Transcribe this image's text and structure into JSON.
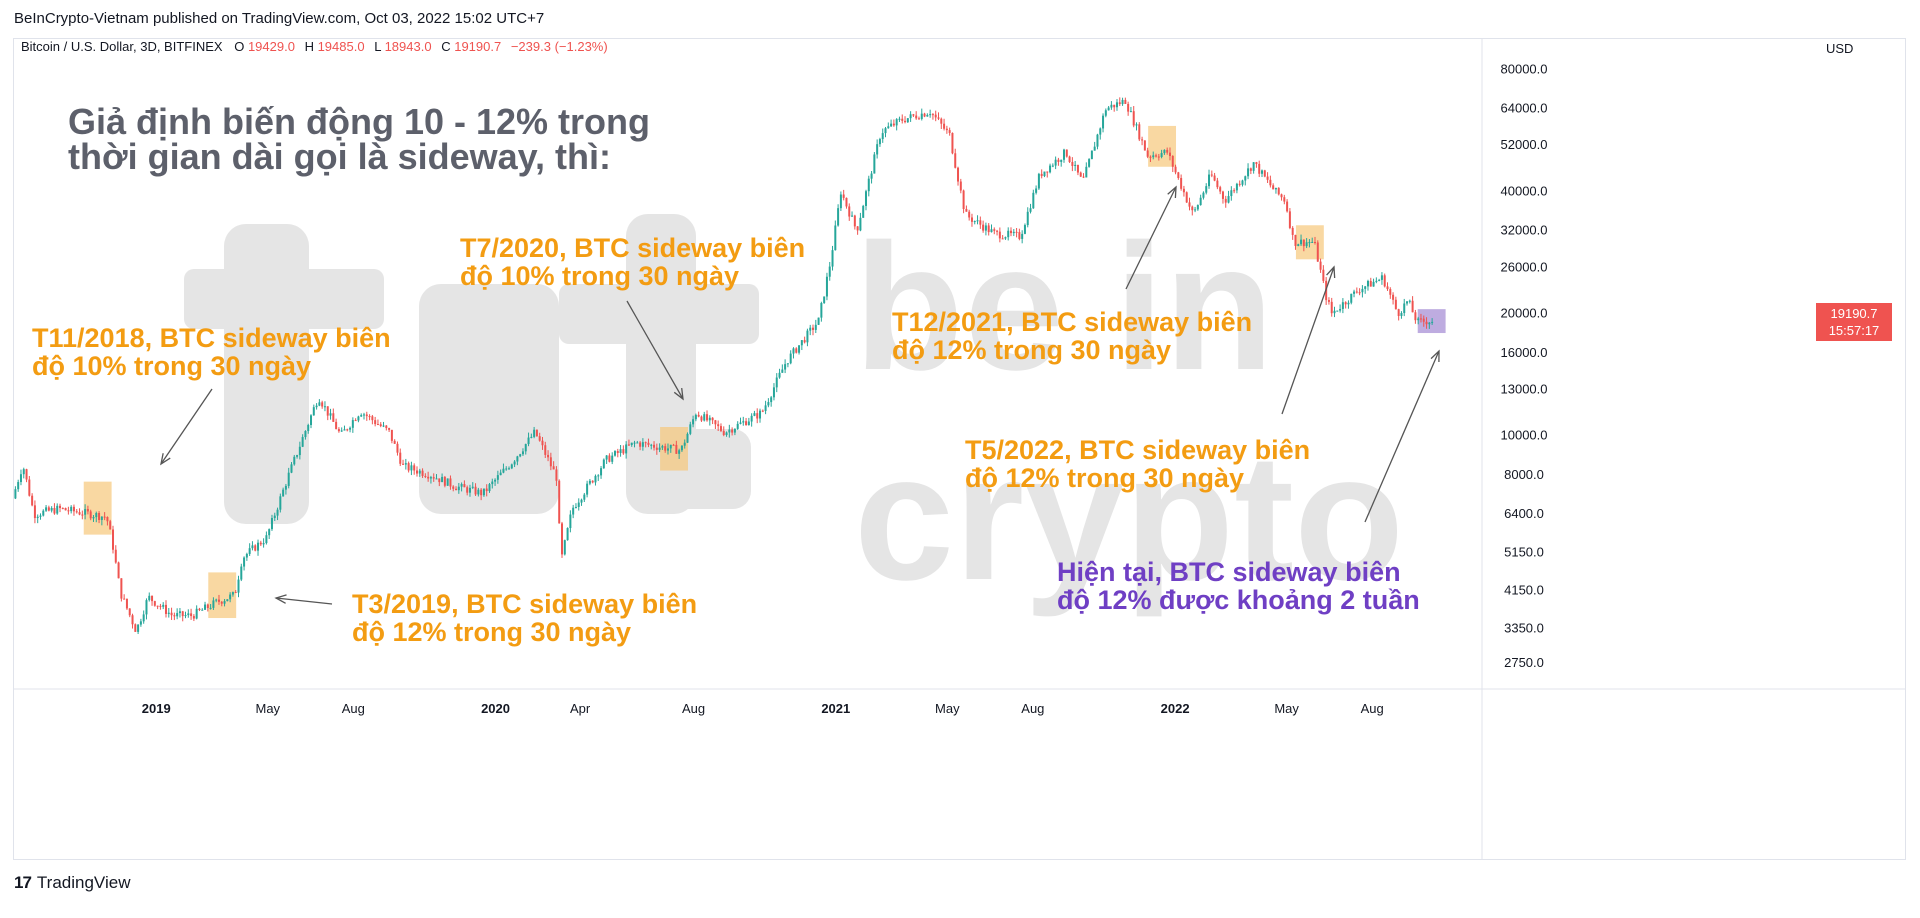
{
  "header": {
    "publish_line": "BeInCrypto-Vietnam published on TradingView.com, Oct 03, 2022 15:02 UTC+7"
  },
  "legend": {
    "symbol": "Bitcoin / U.S. Dollar, 3D, BITFINEX",
    "o_label": "O",
    "o_value": "19429.0",
    "h_label": "H",
    "h_value": "19485.0",
    "l_label": "L",
    "l_value": "18943.0",
    "c_label": "C",
    "c_value": "19190.7",
    "change": "−239.3 (−1.23%)"
  },
  "price_axis": {
    "currency": "USD",
    "last_price": "19190.7",
    "countdown": "15:57:17"
  },
  "headline": {
    "line1": "Giả định biến động 10 - 12% trong",
    "line2": "thời gian dài gọi là sideway, thì:"
  },
  "annotations": [
    {
      "line1": "T11/2018, BTC sideway biên",
      "line2": "độ 10% trong 30 ngày"
    },
    {
      "line1": "T3/2019, BTC sideway biên",
      "line2": "độ 12% trong 30 ngày"
    },
    {
      "line1": "T7/2020, BTC sideway biên",
      "line2": "độ 10% trong 30 ngày"
    },
    {
      "line1": "T12/2021, BTC sideway biên",
      "line2": "độ 12% trong 30 ngày"
    },
    {
      "line1": "T5/2022, BTC sideway biên",
      "line2": "độ 12% trong 30 ngày"
    },
    {
      "line1": "Hiện tại, BTC sideway biên",
      "line2": "độ 12% được khoảng 2 tuần"
    }
  ],
  "watermark": {
    "line1": "be in",
    "line2": "crypto"
  },
  "footer": {
    "brand": "TradingView"
  },
  "colors": {
    "up": "#26a69a",
    "down": "#ef5350",
    "annotation_orange": "#f39c12",
    "annotation_purple": "#6f3fc4",
    "highlight_orange": "#f7c77a",
    "highlight_purple": "#b39ddb",
    "headline": "#5d606b",
    "watermark": "#e5e5e5"
  },
  "chart_data": {
    "type": "candlestick",
    "title": "Bitcoin / U.S. Dollar, 3D, BITFINEX",
    "y_scale": "log",
    "ylim": [
      2400,
      95000
    ],
    "y_ticks": [
      80000,
      64000,
      52000,
      40000,
      32000,
      26000,
      20000,
      16000,
      13000,
      10000,
      8000,
      6400,
      5150,
      4150,
      3350,
      2750
    ],
    "y_tick_labels": [
      "80000.0",
      "64000.0",
      "52000.0",
      "40000.0",
      "32000.0",
      "26000.0",
      "20000.0",
      "16000.0",
      "13000.0",
      "10000.0",
      "8000.0",
      "6400.0",
      "5150.0",
      "4150.0",
      "3350.0",
      "2750.0"
    ],
    "x_range": [
      "2018-08-01",
      "2022-11-25"
    ],
    "x_ticks": [
      {
        "date": "2019-01-01",
        "label": "2019",
        "bold": true
      },
      {
        "date": "2019-05-01",
        "label": "May",
        "bold": false
      },
      {
        "date": "2019-08-01",
        "label": "Aug",
        "bold": false
      },
      {
        "date": "2020-01-01",
        "label": "2020",
        "bold": true
      },
      {
        "date": "2020-04-01",
        "label": "Apr",
        "bold": false
      },
      {
        "date": "2020-08-01",
        "label": "Aug",
        "bold": false
      },
      {
        "date": "2021-01-01",
        "label": "2021",
        "bold": true
      },
      {
        "date": "2021-05-01",
        "label": "May",
        "bold": false
      },
      {
        "date": "2021-08-01",
        "label": "Aug",
        "bold": false
      },
      {
        "date": "2022-01-01",
        "label": "2022",
        "bold": true
      },
      {
        "date": "2022-05-01",
        "label": "May",
        "bold": false
      },
      {
        "date": "2022-08-01",
        "label": "Aug",
        "bold": false
      }
    ],
    "trend_anchors": [
      [
        "2018-08-01",
        7000
      ],
      [
        "2018-08-12",
        8500
      ],
      [
        "2018-08-24",
        6400
      ],
      [
        "2018-09-20",
        6600
      ],
      [
        "2018-10-25",
        6400
      ],
      [
        "2018-11-10",
        6300
      ],
      [
        "2018-11-16",
        5500
      ],
      [
        "2018-11-25",
        4100
      ],
      [
        "2018-12-12",
        3300
      ],
      [
        "2018-12-25",
        4000
      ],
      [
        "2019-01-20",
        3600
      ],
      [
        "2019-02-10",
        3600
      ],
      [
        "2019-03-10",
        3900
      ],
      [
        "2019-03-28",
        4050
      ],
      [
        "2019-04-05",
        5000
      ],
      [
        "2019-05-01",
        5600
      ],
      [
        "2019-05-25",
        8000
      ],
      [
        "2019-06-26",
        12500
      ],
      [
        "2019-07-20",
        10000
      ],
      [
        "2019-08-10",
        11500
      ],
      [
        "2019-09-10",
        10200
      ],
      [
        "2019-09-25",
        8400
      ],
      [
        "2019-10-25",
        8000
      ],
      [
        "2019-11-20",
        7500
      ],
      [
        "2019-12-20",
        7200
      ],
      [
        "2020-01-20",
        8600
      ],
      [
        "2020-02-14",
        10200
      ],
      [
        "2020-03-08",
        7900
      ],
      [
        "2020-03-13",
        4900
      ],
      [
        "2020-03-25",
        6600
      ],
      [
        "2020-04-30",
        8700
      ],
      [
        "2020-06-01",
        9600
      ],
      [
        "2020-07-20",
        9200
      ],
      [
        "2020-08-05",
        11400
      ],
      [
        "2020-09-05",
        10200
      ],
      [
        "2020-10-15",
        11400
      ],
      [
        "2020-11-10",
        15200
      ],
      [
        "2020-12-15",
        19200
      ],
      [
        "2020-12-28",
        27000
      ],
      [
        "2021-01-08",
        40000
      ],
      [
        "2021-01-25",
        32000
      ],
      [
        "2021-02-20",
        56000
      ],
      [
        "2021-03-14",
        60000
      ],
      [
        "2021-04-14",
        63000
      ],
      [
        "2021-05-05",
        55000
      ],
      [
        "2021-05-15",
        42000
      ],
      [
        "2021-05-22",
        35000
      ],
      [
        "2021-06-22",
        31500
      ],
      [
        "2021-07-20",
        31000
      ],
      [
        "2021-08-10",
        44000
      ],
      [
        "2021-09-07",
        50000
      ],
      [
        "2021-09-25",
        42000
      ],
      [
        "2021-10-20",
        64000
      ],
      [
        "2021-11-10",
        67000
      ],
      [
        "2021-12-04",
        49000
      ],
      [
        "2021-12-25",
        50000
      ],
      [
        "2022-01-22",
        35000
      ],
      [
        "2022-02-10",
        44000
      ],
      [
        "2022-02-25",
        38000
      ],
      [
        "2022-03-28",
        47000
      ],
      [
        "2022-04-20",
        40000
      ],
      [
        "2022-05-01",
        38000
      ],
      [
        "2022-05-10",
        30000
      ],
      [
        "2022-06-01",
        30000
      ],
      [
        "2022-06-14",
        22000
      ],
      [
        "2022-06-20",
        20000
      ],
      [
        "2022-07-20",
        23000
      ],
      [
        "2022-08-14",
        24500
      ],
      [
        "2022-08-30",
        20000
      ],
      [
        "2022-09-10",
        21500
      ],
      [
        "2022-09-20",
        19000
      ],
      [
        "2022-10-01",
        19200
      ],
      [
        "2022-10-03",
        19190
      ]
    ],
    "highlight_zones": [
      {
        "start": "2018-10-15",
        "end": "2018-11-14",
        "low": 5700,
        "high": 7700,
        "color": "orange"
      },
      {
        "start": "2019-02-26",
        "end": "2019-03-28",
        "low": 3550,
        "high": 4600,
        "color": "orange"
      },
      {
        "start": "2020-06-26",
        "end": "2020-07-26",
        "low": 8200,
        "high": 10500,
        "color": "orange"
      },
      {
        "start": "2021-12-03",
        "end": "2022-01-02",
        "low": 46000,
        "high": 58000,
        "color": "orange"
      },
      {
        "start": "2022-05-11",
        "end": "2022-06-10",
        "low": 27200,
        "high": 33000,
        "color": "orange"
      },
      {
        "start": "2022-09-19",
        "end": "2022-10-19",
        "low": 17900,
        "high": 20500,
        "color": "purple"
      }
    ]
  }
}
